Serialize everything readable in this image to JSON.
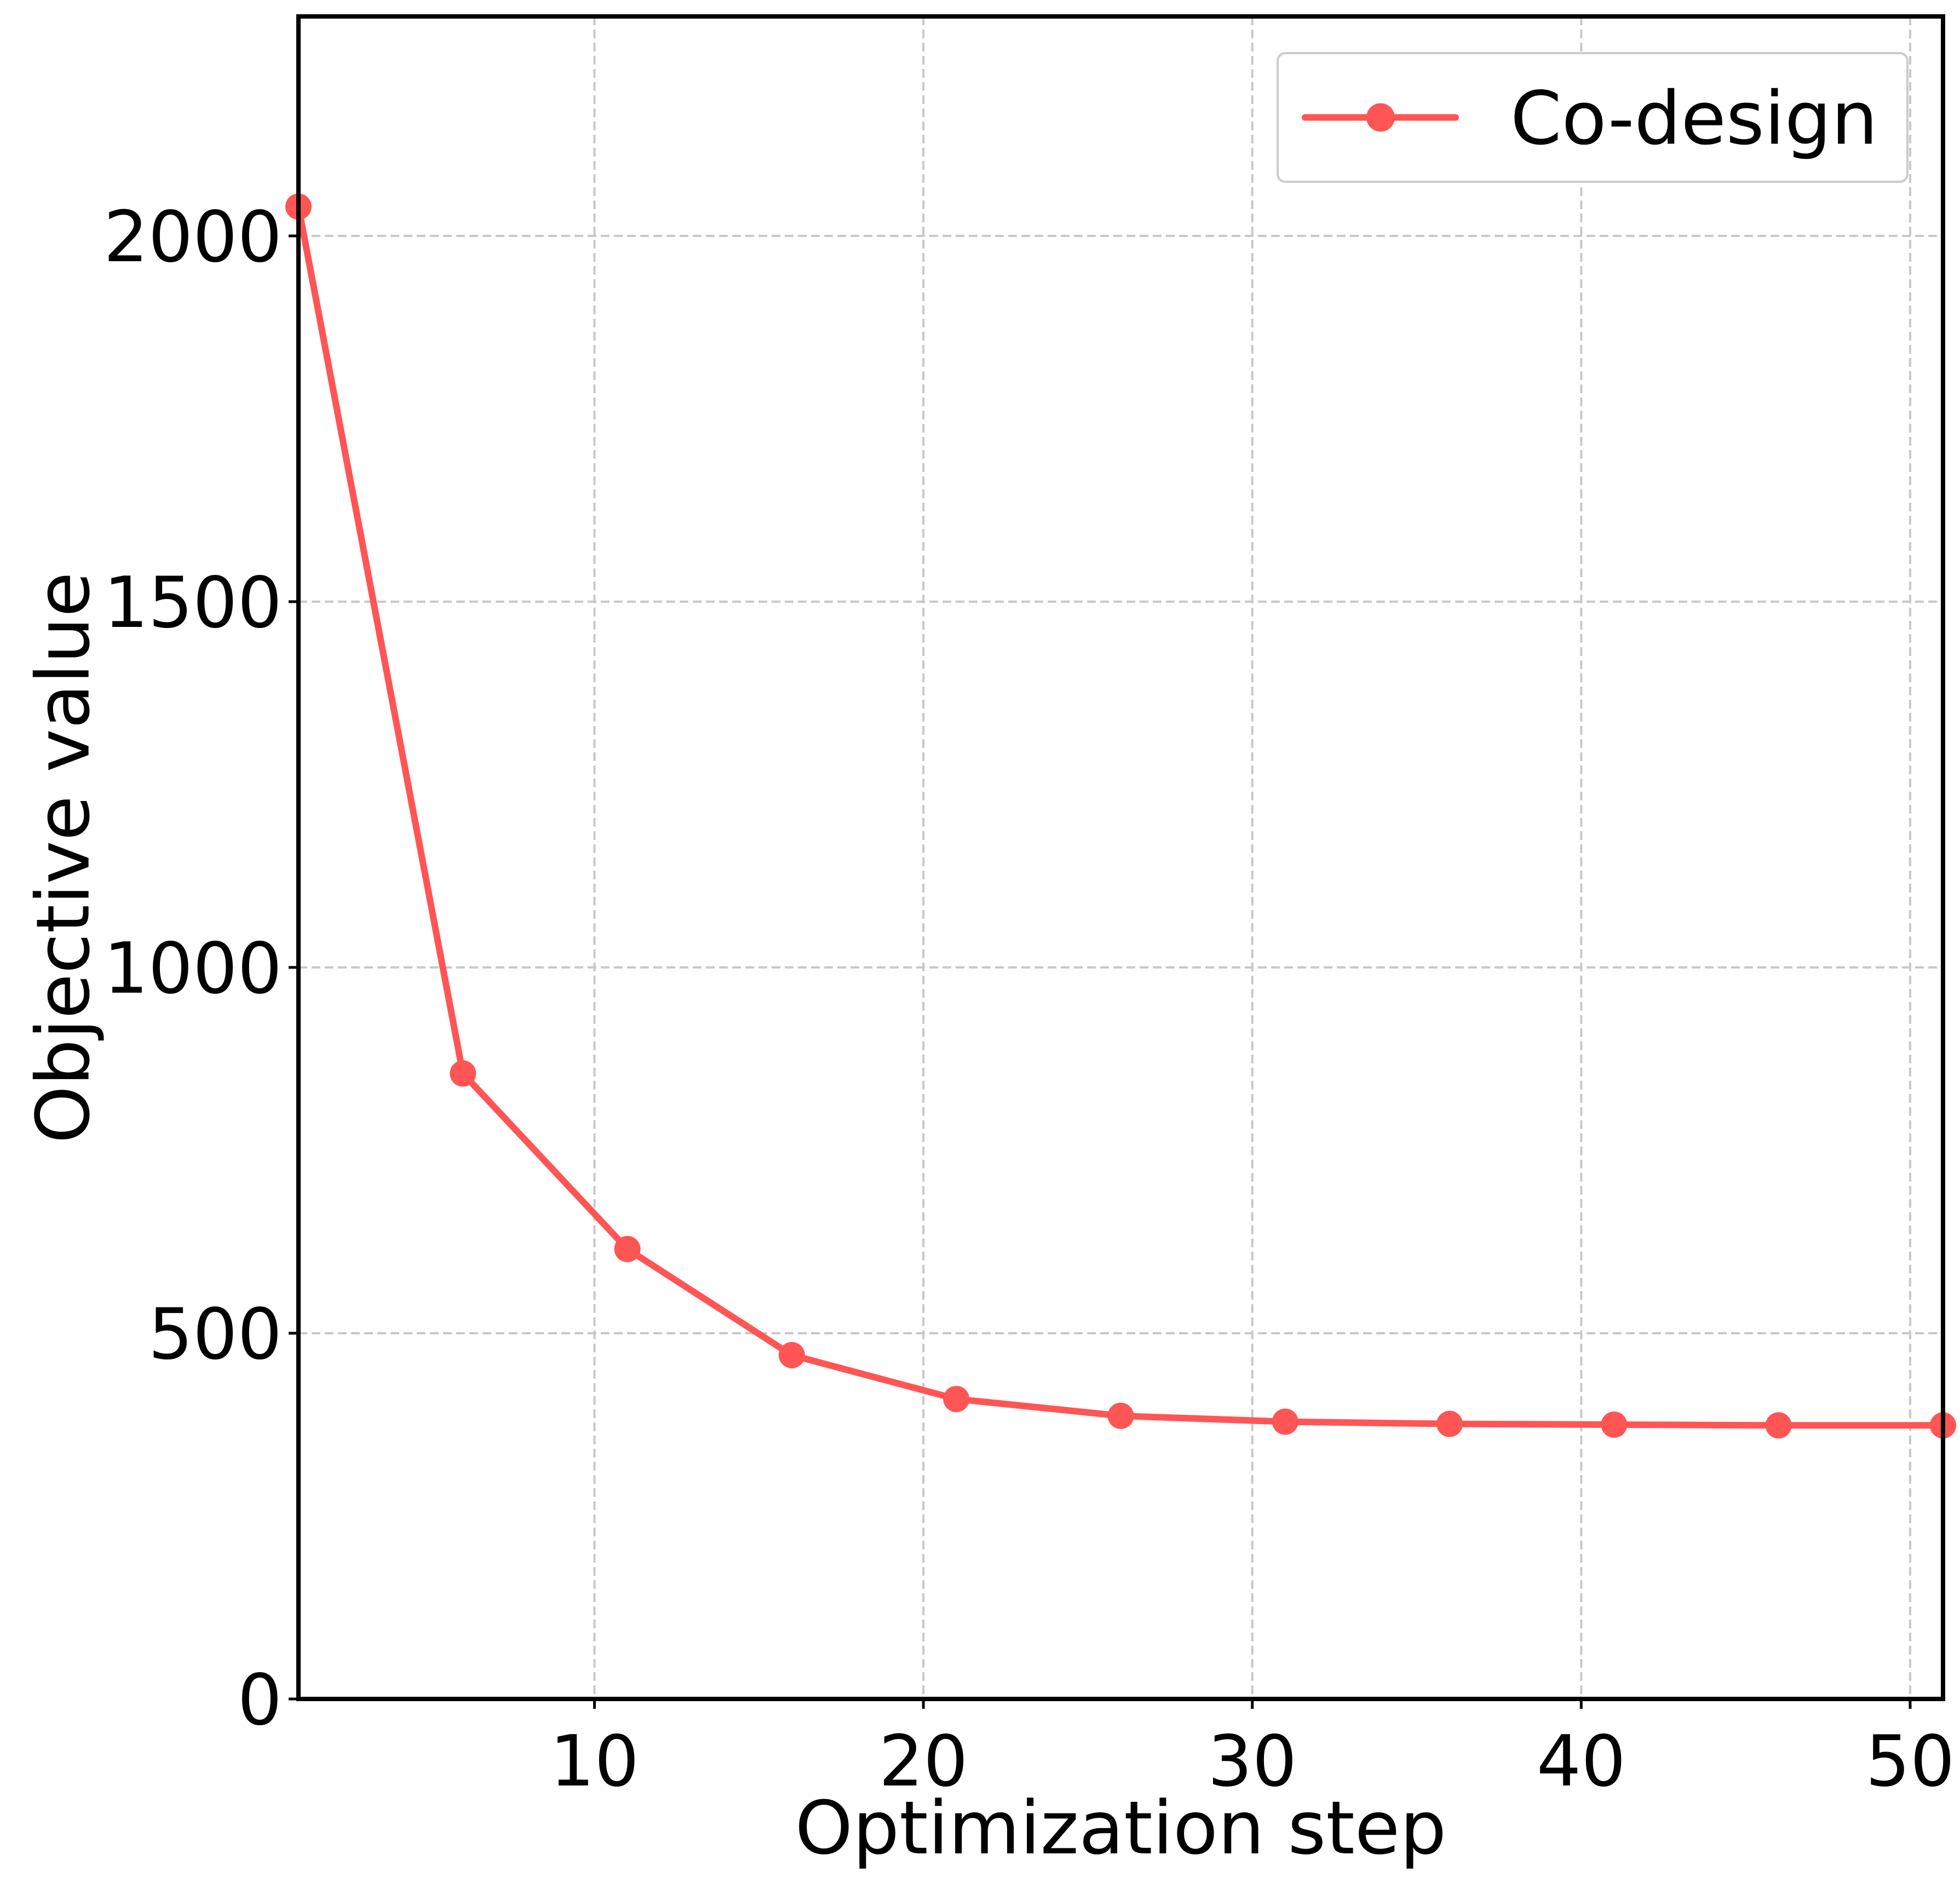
{
  "chart_data": {
    "type": "line",
    "title": "",
    "xlabel": "Optimization step",
    "ylabel": "Objective value",
    "xlim": [
      1,
      51
    ],
    "ylim": [
      0,
      2300
    ],
    "xticks": [
      10,
      20,
      30,
      40,
      50
    ],
    "yticks": [
      0,
      500,
      1000,
      1500,
      2000
    ],
    "grid": true,
    "legend_position": "top-right",
    "series": [
      {
        "name": "Co-design",
        "color": "#ff5555",
        "marker": "circle",
        "x": [
          1,
          6,
          11,
          16,
          21,
          26,
          31,
          36,
          41,
          46,
          51
        ],
        "y": [
          2040,
          855,
          615,
          470,
          410,
          387,
          379,
          376,
          375,
          374,
          374
        ]
      }
    ]
  }
}
